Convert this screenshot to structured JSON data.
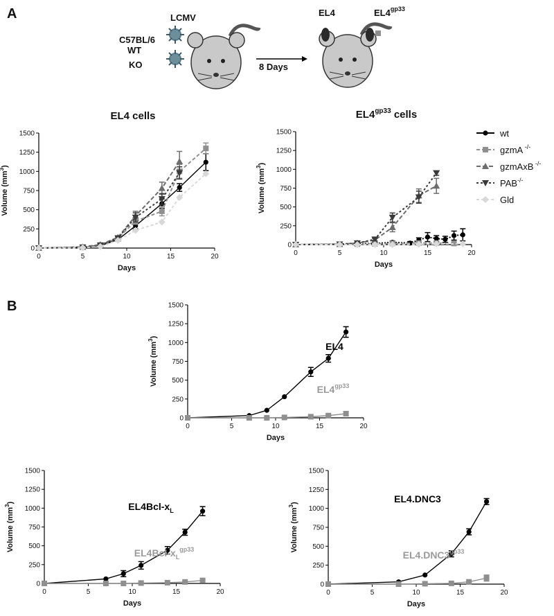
{
  "panels": {
    "a": "A",
    "b": "B"
  },
  "schematic": {
    "virus": "LCMV",
    "strain": "C57BL/6",
    "wt": "WT",
    "ko": "KO",
    "arrow_label": "8 Days",
    "tumor_left": "EL4",
    "tumor_right_base": "EL4",
    "tumor_right_sup": "gp33"
  },
  "legend": [
    {
      "name": "wt",
      "sup": ""
    },
    {
      "name": "gzmA",
      "sup": " -/-"
    },
    {
      "name": "gzmAxB",
      "sup": " -/-"
    },
    {
      "name": "PAB",
      "sup": "-/-"
    },
    {
      "name": "Gld",
      "sup": ""
    }
  ],
  "colors": {
    "black": "#000000",
    "gray": "#8f8f8f",
    "darkgray": "#6d6d6d",
    "light": "#d8d8d8"
  },
  "chart_data": [
    {
      "id": "a1",
      "type": "line",
      "title": "EL4 cells",
      "title_sup": "",
      "xlabel": "Days",
      "ylabel": "Volume (mm",
      "ylabel_sup": "3",
      "ylabel_end": ")",
      "xlim": [
        0,
        20
      ],
      "ylim": [
        0,
        1500
      ],
      "xticks": [
        0,
        5,
        10,
        15,
        20
      ],
      "yticks": [
        0,
        250,
        500,
        750,
        1000,
        1250,
        1500
      ],
      "series": [
        {
          "name": "wt",
          "marker": "circle",
          "color": "#000000",
          "dash": "",
          "x": [
            0,
            5,
            7,
            9,
            11,
            14,
            16,
            19
          ],
          "y": [
            0,
            10,
            30,
            110,
            290,
            580,
            790,
            1120
          ],
          "err": [
            0,
            5,
            10,
            20,
            40,
            60,
            50,
            110
          ]
        },
        {
          "name": "gzmA -/-",
          "marker": "square",
          "color": "#8f8f8f",
          "dash": "5,3",
          "x": [
            0,
            5,
            7,
            9,
            11,
            14,
            16,
            19
          ],
          "y": [
            0,
            12,
            40,
            130,
            350,
            480,
            1000,
            1300
          ],
          "err": [
            0,
            5,
            10,
            20,
            40,
            60,
            90,
            70
          ]
        },
        {
          "name": "gzmAxB -/-",
          "marker": "triangle",
          "color": "#6d6d6d",
          "dash": "6,3",
          "x": [
            0,
            5,
            7,
            9,
            11,
            14,
            16
          ],
          "y": [
            0,
            15,
            45,
            140,
            420,
            780,
            1130
          ],
          "err": [
            0,
            5,
            10,
            20,
            60,
            80,
            130
          ]
        },
        {
          "name": "PAB -/-",
          "marker": "tri-down",
          "color": "#3a3a3a",
          "dash": "3,3",
          "x": [
            0,
            5,
            7,
            9,
            11,
            14,
            16
          ],
          "y": [
            0,
            10,
            35,
            130,
            400,
            640,
            980
          ],
          "err": [
            0,
            5,
            10,
            20,
            60,
            70,
            80
          ]
        },
        {
          "name": "Gld",
          "marker": "diamond",
          "color": "#d8d8d8",
          "dash": "4,3",
          "x": [
            0,
            5,
            7,
            9,
            11,
            14,
            16,
            19
          ],
          "y": [
            0,
            5,
            20,
            100,
            230,
            340,
            660,
            970
          ],
          "err": [
            0,
            0,
            0,
            0,
            0,
            0,
            0,
            0
          ]
        }
      ]
    },
    {
      "id": "a2",
      "type": "line",
      "title": "EL4",
      "title_sup": "gp33",
      "title_end": " cells",
      "xlabel": "Days",
      "ylabel": "Volume (mm",
      "ylabel_sup": "3",
      "ylabel_end": ")",
      "xlim": [
        0,
        20
      ],
      "ylim": [
        0,
        1500
      ],
      "xticks": [
        0,
        5,
        10,
        15,
        20
      ],
      "yticks": [
        0,
        250,
        500,
        750,
        1000,
        1250,
        1500
      ],
      "series": [
        {
          "name": "wt",
          "marker": "circle",
          "color": "#000000",
          "dash": "2,2",
          "x": [
            0,
            5,
            7,
            9,
            11,
            13,
            14,
            15,
            16,
            17,
            18,
            19
          ],
          "y": [
            0,
            5,
            10,
            15,
            30,
            20,
            60,
            100,
            80,
            70,
            120,
            130
          ],
          "err": [
            0,
            5,
            10,
            10,
            20,
            20,
            30,
            60,
            40,
            40,
            60,
            80
          ]
        },
        {
          "name": "gzmA -/-",
          "marker": "square",
          "color": "#8f8f8f",
          "dash": "5,3",
          "x": [
            0,
            5,
            7,
            9,
            11,
            14,
            16,
            18
          ],
          "y": [
            0,
            5,
            5,
            10,
            15,
            20,
            20,
            15
          ],
          "err": [
            0,
            0,
            0,
            0,
            5,
            5,
            5,
            5
          ]
        },
        {
          "name": "gzmAxB -/-",
          "marker": "triangle",
          "color": "#6d6d6d",
          "dash": "6,3",
          "x": [
            0,
            5,
            7,
            9,
            11,
            14,
            16
          ],
          "y": [
            0,
            5,
            20,
            60,
            230,
            650,
            780
          ],
          "err": [
            0,
            5,
            10,
            20,
            60,
            90,
            100
          ]
        },
        {
          "name": "PAB -/-",
          "marker": "tri-down",
          "color": "#3a3a3a",
          "dash": "3,3",
          "x": [
            0,
            5,
            7,
            9,
            11,
            14,
            16
          ],
          "y": [
            0,
            5,
            20,
            70,
            360,
            630,
            950
          ],
          "err": [
            0,
            5,
            10,
            20,
            60,
            80,
            30
          ]
        },
        {
          "name": "Gld",
          "marker": "diamond",
          "color": "#d8d8d8",
          "dash": "4,3",
          "x": [
            0,
            5,
            7,
            9,
            11,
            14,
            16,
            19
          ],
          "y": [
            0,
            0,
            0,
            0,
            0,
            5,
            10,
            10
          ],
          "err": [
            0,
            0,
            0,
            0,
            0,
            0,
            0,
            0
          ]
        }
      ]
    },
    {
      "id": "b1",
      "type": "line",
      "xlabel": "Days",
      "ylabel": "Volume (mm",
      "ylabel_sup": "3",
      "ylabel_end": ")",
      "xlim": [
        0,
        20
      ],
      "ylim": [
        0,
        1500
      ],
      "xticks": [
        0,
        5,
        10,
        15,
        20
      ],
      "yticks": [
        0,
        250,
        500,
        750,
        1000,
        1250,
        1500
      ],
      "annotations": [
        {
          "base": "EL4",
          "sub": "",
          "sup": "",
          "color": "#000000",
          "bold": true
        },
        {
          "base": "EL4",
          "sub": "",
          "sup": "gp33",
          "color": "#9a9a9a",
          "bold": true
        }
      ],
      "series": [
        {
          "name": "EL4",
          "marker": "circle",
          "color": "#000000",
          "dash": "",
          "x": [
            0,
            7,
            9,
            11,
            14,
            16,
            18
          ],
          "y": [
            0,
            30,
            100,
            280,
            610,
            790,
            1140
          ],
          "err": [
            0,
            0,
            0,
            0,
            60,
            50,
            70
          ]
        },
        {
          "name": "EL4gp33",
          "marker": "square",
          "color": "#8f8f8f",
          "dash": "",
          "x": [
            0,
            7,
            9,
            11,
            14,
            16,
            18
          ],
          "y": [
            0,
            0,
            0,
            5,
            15,
            30,
            55
          ],
          "err": [
            0,
            0,
            0,
            0,
            5,
            10,
            25
          ]
        }
      ]
    },
    {
      "id": "b2",
      "type": "line",
      "xlabel": "Days",
      "ylabel": "Volume (mm",
      "ylabel_sup": "3",
      "ylabel_end": ")",
      "xlim": [
        0,
        20
      ],
      "ylim": [
        0,
        1500
      ],
      "xticks": [
        0,
        5,
        10,
        15,
        20
      ],
      "yticks": [
        0,
        250,
        500,
        750,
        1000,
        1250,
        1500
      ],
      "annotations": [
        {
          "base": "EL4Bcl-x",
          "sub": "L",
          "sup": "",
          "color": "#000000",
          "bold": true
        },
        {
          "base": "EL4Bcl-x",
          "sub": "L",
          "sup": "gp33",
          "color": "#9a9a9a",
          "bold": true
        }
      ],
      "series": [
        {
          "name": "EL4Bcl-xL",
          "marker": "circle",
          "color": "#000000",
          "dash": "",
          "x": [
            0,
            7,
            9,
            11,
            14,
            16,
            18
          ],
          "y": [
            0,
            60,
            130,
            240,
            440,
            680,
            960
          ],
          "err": [
            0,
            0,
            40,
            50,
            50,
            40,
            60
          ]
        },
        {
          "name": "EL4Bcl-xLgp33",
          "marker": "square",
          "color": "#8f8f8f",
          "dash": "",
          "x": [
            0,
            7,
            9,
            11,
            14,
            16,
            18
          ],
          "y": [
            0,
            0,
            0,
            5,
            10,
            20,
            40
          ],
          "err": [
            0,
            0,
            0,
            0,
            0,
            5,
            5
          ]
        }
      ]
    },
    {
      "id": "b3",
      "type": "line",
      "xlabel": "Days",
      "ylabel": "Volume (mm",
      "ylabel_sup": "3",
      "ylabel_end": ")",
      "xlim": [
        0,
        20
      ],
      "ylim": [
        0,
        1500
      ],
      "xticks": [
        0,
        5,
        10,
        15,
        20
      ],
      "yticks": [
        0,
        250,
        500,
        750,
        1000,
        1250,
        1500
      ],
      "annotations": [
        {
          "base": "EL4.DNC3",
          "sub": "",
          "sup": "",
          "color": "#000000",
          "bold": true
        },
        {
          "base": "EL4.DNC3",
          "sub": "",
          "sup": "gp33",
          "color": "#9a9a9a",
          "bold": true
        }
      ],
      "series": [
        {
          "name": "EL4.DNC3",
          "marker": "circle",
          "color": "#000000",
          "dash": "",
          "x": [
            0,
            8,
            11,
            14,
            16,
            18
          ],
          "y": [
            0,
            30,
            120,
            400,
            690,
            1090
          ],
          "err": [
            0,
            0,
            0,
            40,
            40,
            40
          ]
        },
        {
          "name": "EL4.DNC3gp33",
          "marker": "square",
          "color": "#8f8f8f",
          "dash": "",
          "x": [
            0,
            8,
            11,
            14,
            16,
            18
          ],
          "y": [
            0,
            0,
            5,
            10,
            30,
            80
          ],
          "err": [
            0,
            0,
            0,
            5,
            10,
            40
          ]
        }
      ]
    }
  ]
}
